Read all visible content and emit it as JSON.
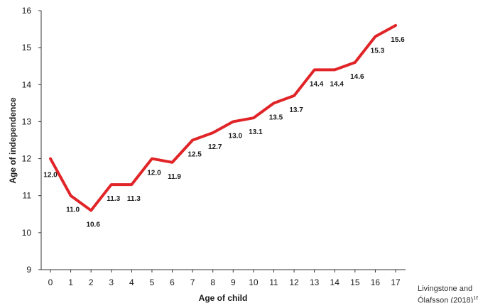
{
  "chart_data": {
    "type": "line",
    "xlabel": "Age of child",
    "ylabel": "Age of independence",
    "x": [
      0,
      1,
      2,
      3,
      4,
      5,
      6,
      7,
      8,
      9,
      10,
      11,
      12,
      13,
      14,
      15,
      16,
      17
    ],
    "series": [
      {
        "values": [
          12.0,
          11.0,
          10.6,
          11.3,
          11.3,
          12.0,
          11.9,
          12.5,
          12.7,
          13.0,
          13.1,
          13.5,
          13.7,
          14.4,
          14.4,
          14.6,
          15.3,
          15.6
        ],
        "color": "#e02427"
      }
    ],
    "data_labels": [
      "12.0",
      "11.0",
      "10.6",
      "11.3",
      "11.3",
      "12.0",
      "11.9",
      "12.5",
      "12.7",
      "13.0",
      "13.1",
      "13.5",
      "13.7",
      "14.4",
      "14.4",
      "14.6",
      "15.3",
      "15.6"
    ],
    "ylim": [
      9,
      16
    ],
    "xlim": [
      0,
      17
    ],
    "yticks": [
      9,
      10,
      11,
      12,
      13,
      14,
      15,
      16
    ],
    "grid": false,
    "legend": "none"
  },
  "source": {
    "line1": "Livingstone and",
    "line2": "Ólafsson (2018)",
    "ref": "16"
  }
}
